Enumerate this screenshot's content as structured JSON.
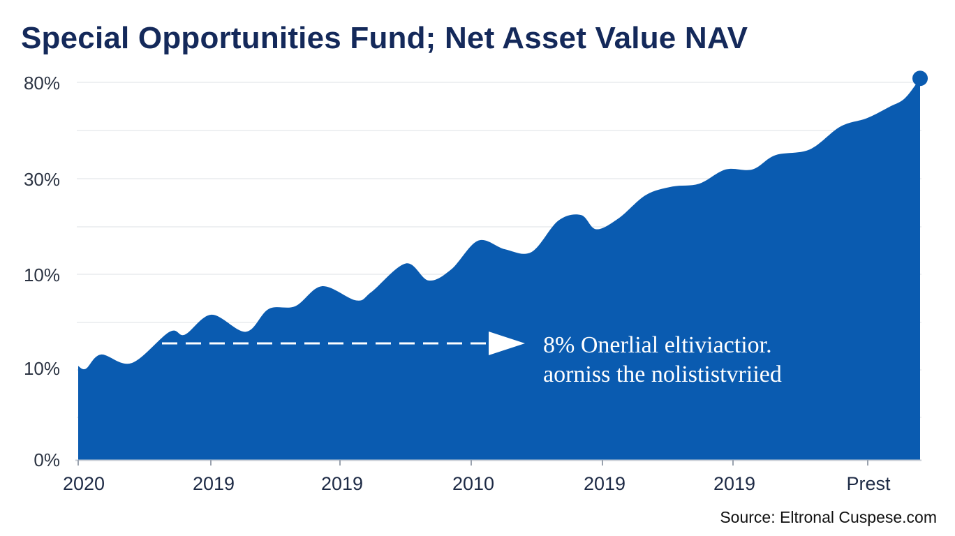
{
  "chart_data": {
    "type": "area",
    "title": "Special Opportunities Fund; Net Asset Value NAV",
    "xlabel": "",
    "ylabel": "",
    "y_tick_labels": [
      "80%",
      "30%",
      "10%",
      "10%",
      "0%"
    ],
    "x_tick_labels": [
      "2020",
      "2019",
      "2019",
      "2010",
      "2019",
      "2019",
      "Prest"
    ],
    "x": [
      0,
      0.1,
      0.3,
      0.7,
      1.2,
      1.4,
      1.75,
      2.2,
      2.5,
      2.85,
      3.2,
      3.65,
      3.85,
      4.3,
      4.6,
      4.9,
      5.25,
      5.6,
      5.95,
      6.3,
      6.6,
      6.8,
      7.1,
      7.45,
      7.8,
      8.15,
      8.5,
      8.85,
      9.15,
      9.6,
      10.0,
      10.35,
      10.65,
      10.85,
      11.05
    ],
    "y": [
      33,
      32,
      37,
      34,
      45,
      44,
      51,
      45,
      53,
      54,
      61,
      56,
      59,
      69,
      63,
      67,
      77,
      74,
      73,
      84,
      86,
      81,
      85,
      93,
      96,
      97,
      102,
      102,
      107,
      109,
      117,
      120,
      124,
      127,
      134
    ],
    "ylim": [
      0,
      137
    ],
    "grid": true,
    "fill_color": "#0a5bb0",
    "end_marker_color": "#0a5bb0",
    "annotation": {
      "lines": [
        "8% Onerlial eltiviactior.",
        "aorniss the nolististvriied"
      ],
      "arrow": "dashed white arrow pointing right"
    },
    "source": "Source: Eltronal Cuspese.com"
  }
}
